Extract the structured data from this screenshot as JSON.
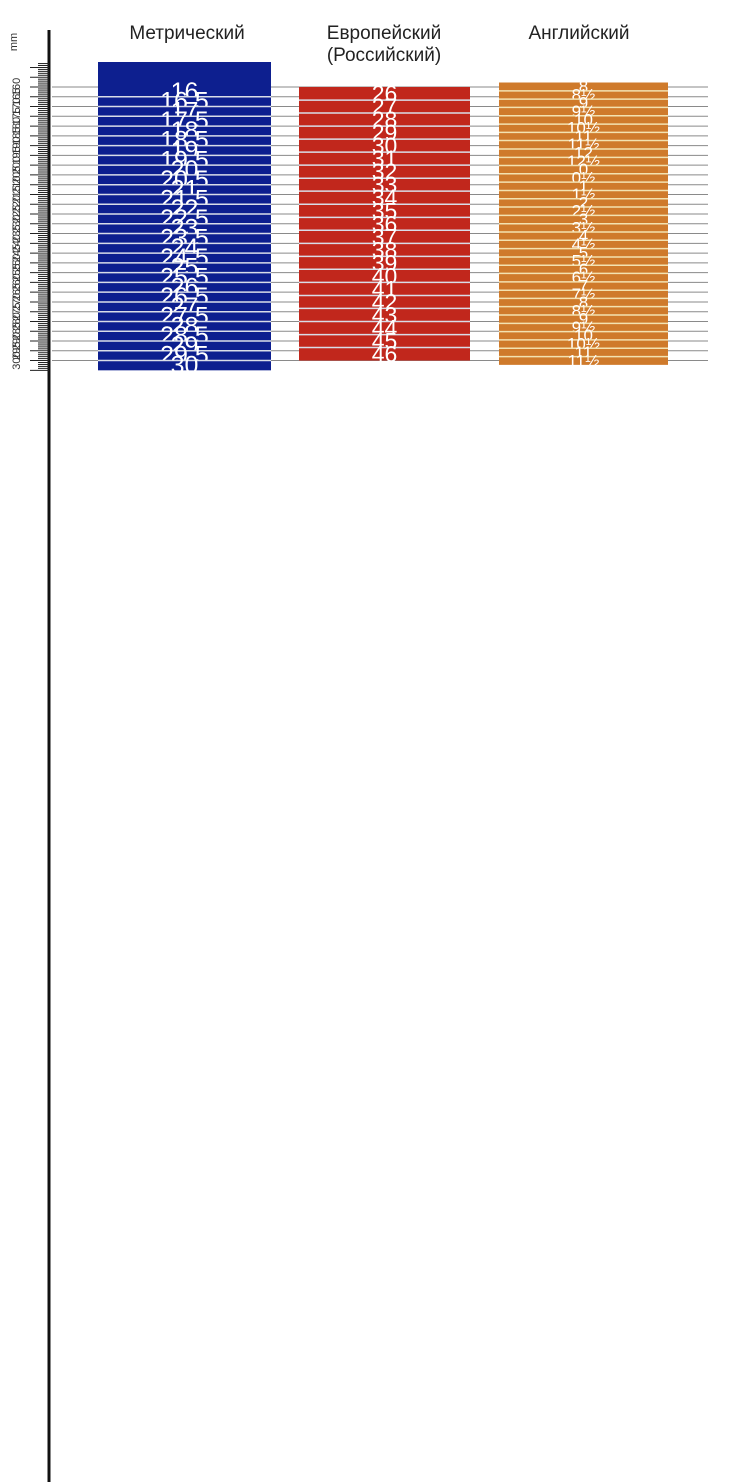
{
  "chart_data": {
    "type": "table",
    "axis": {
      "unit": "mm",
      "labels": [
        "160",
        "165",
        "170",
        "175",
        "180",
        "185",
        "190",
        "195",
        "200",
        "205",
        "210",
        "215",
        "220",
        "225",
        "230",
        "235",
        "240",
        "245",
        "250",
        "255",
        "260",
        "265",
        "270",
        "275",
        "280",
        "285",
        "290",
        "295",
        "300"
      ]
    },
    "columns": [
      {
        "key": "metric",
        "header": [
          "Метрический"
        ],
        "color": "#0d1f8f",
        "rows": [
          {
            "label": "16",
            "from": 160,
            "to": 165
          },
          {
            "label": "16.5",
            "from": 165,
            "to": 170
          },
          {
            "label": "17",
            "from": 170,
            "to": 175
          },
          {
            "label": "17.5",
            "from": 175,
            "to": 180
          },
          {
            "label": "18",
            "from": 180,
            "to": 185
          },
          {
            "label": "18.5",
            "from": 185,
            "to": 190
          },
          {
            "label": "19",
            "from": 190,
            "to": 195
          },
          {
            "label": "19.5",
            "from": 195,
            "to": 200
          },
          {
            "label": "20",
            "from": 200,
            "to": 205
          },
          {
            "label": "20.5",
            "from": 205,
            "to": 210
          },
          {
            "label": "21",
            "from": 210,
            "to": 215
          },
          {
            "label": "21.5",
            "from": 215,
            "to": 220
          },
          {
            "label": "22",
            "from": 220,
            "to": 225
          },
          {
            "label": "22.5",
            "from": 225,
            "to": 230
          },
          {
            "label": "23",
            "from": 230,
            "to": 235
          },
          {
            "label": "23.5",
            "from": 235,
            "to": 240
          },
          {
            "label": "24",
            "from": 240,
            "to": 245
          },
          {
            "label": "24.5",
            "from": 245,
            "to": 250
          },
          {
            "label": "25",
            "from": 250,
            "to": 255
          },
          {
            "label": "25.5",
            "from": 255,
            "to": 260
          },
          {
            "label": "26",
            "from": 260,
            "to": 265
          },
          {
            "label": "26.5",
            "from": 265,
            "to": 270
          },
          {
            "label": "27",
            "from": 270,
            "to": 275
          },
          {
            "label": "27.5",
            "from": 275,
            "to": 280
          },
          {
            "label": "28",
            "from": 280,
            "to": 285
          },
          {
            "label": "28.5",
            "from": 285,
            "to": 290
          },
          {
            "label": "29",
            "from": 290,
            "to": 295
          },
          {
            "label": "29.5",
            "from": 295,
            "to": 300
          },
          {
            "label": "30",
            "from": 300,
            "to": 305
          }
        ]
      },
      {
        "key": "european",
        "header": [
          "Европейский",
          "(Российский)"
        ],
        "color": "#c1271c",
        "rows": [
          {
            "label": "26",
            "from": 160,
            "to": 166.7
          },
          {
            "label": "27",
            "from": 166.7,
            "to": 173.3
          },
          {
            "label": "28",
            "from": 173.3,
            "to": 180
          },
          {
            "label": "29",
            "from": 180,
            "to": 186.7
          },
          {
            "label": "30",
            "from": 186.7,
            "to": 193.3
          },
          {
            "label": "31",
            "from": 193.3,
            "to": 200
          },
          {
            "label": "32",
            "from": 200,
            "to": 206.7
          },
          {
            "label": "33",
            "from": 206.7,
            "to": 213.3
          },
          {
            "label": "34",
            "from": 213.3,
            "to": 220
          },
          {
            "label": "35",
            "from": 220,
            "to": 226.7
          },
          {
            "label": "36",
            "from": 226.7,
            "to": 233.3
          },
          {
            "label": "37",
            "from": 233.3,
            "to": 240
          },
          {
            "label": "38",
            "from": 240,
            "to": 246.7
          },
          {
            "label": "39",
            "from": 246.7,
            "to": 253.3
          },
          {
            "label": "40",
            "from": 253.3,
            "to": 260
          },
          {
            "label": "41",
            "from": 260,
            "to": 266.7
          },
          {
            "label": "42",
            "from": 266.7,
            "to": 273.3
          },
          {
            "label": "43",
            "from": 273.3,
            "to": 280
          },
          {
            "label": "44",
            "from": 280,
            "to": 286.7
          },
          {
            "label": "45",
            "from": 286.7,
            "to": 293.3
          },
          {
            "label": "46",
            "from": 293.3,
            "to": 300
          }
        ]
      },
      {
        "key": "english",
        "header": [
          "Английский"
        ],
        "color": "#cf7a2b",
        "rows": [
          {
            "label": "8",
            "from": 157.7,
            "to": 162
          },
          {
            "label": "8½",
            "from": 162,
            "to": 166.2
          },
          {
            "label": "9",
            "from": 166.2,
            "to": 170.4
          },
          {
            "label": "9½",
            "from": 170.4,
            "to": 174.7
          },
          {
            "label": "10",
            "from": 174.7,
            "to": 179
          },
          {
            "label": "10½",
            "from": 179,
            "to": 183.2
          },
          {
            "label": "11",
            "from": 183.2,
            "to": 187.4
          },
          {
            "label": "11½",
            "from": 187.4,
            "to": 191.7
          },
          {
            "label": "12",
            "from": 191.7,
            "to": 196
          },
          {
            "label": "12½",
            "from": 196,
            "to": 200.2
          },
          {
            "label": "0",
            "from": 200.2,
            "to": 204.4
          },
          {
            "label": "0½",
            "from": 204.4,
            "to": 208.7
          },
          {
            "label": "1",
            "from": 208.7,
            "to": 213
          },
          {
            "label": "1½",
            "from": 213,
            "to": 217.2
          },
          {
            "label": "2",
            "from": 217.2,
            "to": 221.4
          },
          {
            "label": "2½",
            "from": 221.4,
            "to": 225.7
          },
          {
            "label": "3",
            "from": 225.7,
            "to": 230
          },
          {
            "label": "3½",
            "from": 230,
            "to": 234.2
          },
          {
            "label": "4",
            "from": 234.2,
            "to": 238.4
          },
          {
            "label": "4½",
            "from": 238.4,
            "to": 242.7
          },
          {
            "label": "5",
            "from": 242.7,
            "to": 247
          },
          {
            "label": "5½",
            "from": 247,
            "to": 251.2
          },
          {
            "label": "6",
            "from": 251.2,
            "to": 255.4
          },
          {
            "label": "6½",
            "from": 255.4,
            "to": 259.7
          },
          {
            "label": "7",
            "from": 259.7,
            "to": 264
          },
          {
            "label": "7½",
            "from": 264,
            "to": 268.2
          },
          {
            "label": "8",
            "from": 268.2,
            "to": 272.4
          },
          {
            "label": "8½",
            "from": 272.4,
            "to": 276.7
          },
          {
            "label": "9",
            "from": 276.7,
            "to": 281
          },
          {
            "label": "9½",
            "from": 281,
            "to": 285.2
          },
          {
            "label": "10",
            "from": 285.2,
            "to": 289.4
          },
          {
            "label": "10½",
            "from": 289.4,
            "to": 293.7
          },
          {
            "label": "11",
            "from": 293.7,
            "to": 298
          },
          {
            "label": "11½",
            "from": 298,
            "to": 302.2
          }
        ]
      }
    ]
  }
}
